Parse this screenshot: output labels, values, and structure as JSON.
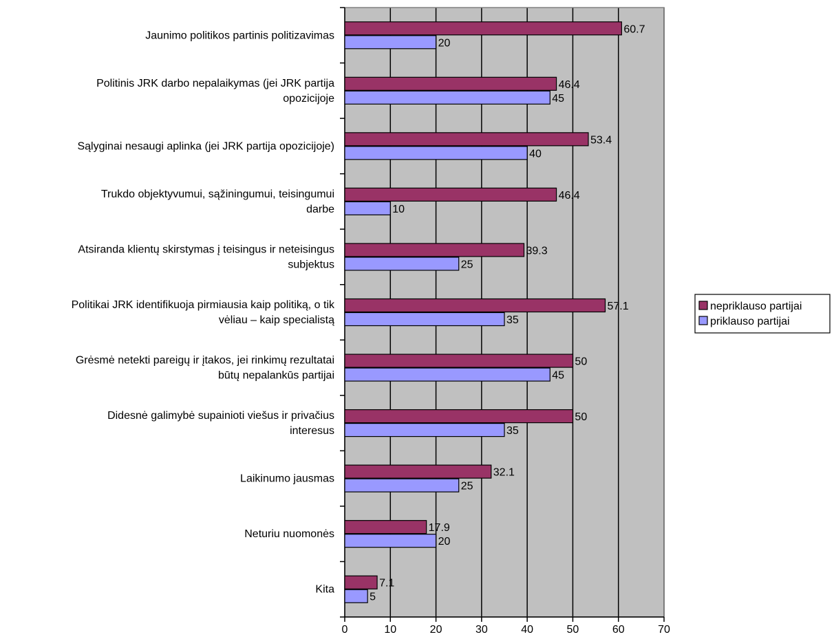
{
  "chart_data": {
    "type": "bar",
    "orientation": "horizontal",
    "categories": [
      [
        "Jaunimo politikos partinis politizavimas"
      ],
      [
        "Politinis JRK darbo nepalaikymas (jei JRK partija",
        "opozicijoje"
      ],
      [
        "Sąlyginai nesaugi aplinka (jei JRK partija opozicijoje)"
      ],
      [
        "Trukdo objektyvumui, sąžiningumui, teisingumui",
        "darbe"
      ],
      [
        "Atsiranda klientų skirstymas į teisingus ir neteisingus",
        "subjektus"
      ],
      [
        "Politikai JRK identifikuoja pirmiausia kaip politiką, o tik",
        "vėliau – kaip specialistą"
      ],
      [
        "Grėsmė netekti pareigų ir įtakos, jei rinkimų rezultatai",
        "būtų nepalankūs partijai"
      ],
      [
        "Didesnė galimybė supainioti viešus ir privačius",
        "interesus"
      ],
      [
        "Laikinumo jausmas"
      ],
      [
        "Neturiu nuomonės"
      ],
      [
        "Kita"
      ]
    ],
    "series": [
      {
        "name": "nepriklauso partijai",
        "color": "#993366",
        "values": [
          60.7,
          46.4,
          53.4,
          46.4,
          39.3,
          57.1,
          50,
          50,
          32.1,
          17.9,
          7.1
        ],
        "labels": [
          "60.7",
          "46.4",
          "53.4",
          "46.4",
          "39.3",
          "57.1",
          "50",
          "50",
          "32.1",
          "17.9",
          "7.1"
        ]
      },
      {
        "name": "priklauso partijai",
        "color": "#9999ff",
        "values": [
          20,
          45,
          40,
          10,
          25,
          35,
          45,
          35,
          25,
          20,
          5
        ],
        "labels": [
          "20",
          "45",
          "40",
          "10",
          "25",
          "35",
          "45",
          "35",
          "25",
          "20",
          "5"
        ]
      }
    ],
    "xlim": [
      0,
      70
    ],
    "xticks": [
      0,
      10,
      20,
      30,
      40,
      50,
      60,
      70
    ],
    "xtick_labels": [
      "0",
      "10",
      "20",
      "30",
      "40",
      "50",
      "60",
      "70"
    ],
    "grid": true,
    "plot_background": "#c0c0c0",
    "legend_position": "right"
  }
}
